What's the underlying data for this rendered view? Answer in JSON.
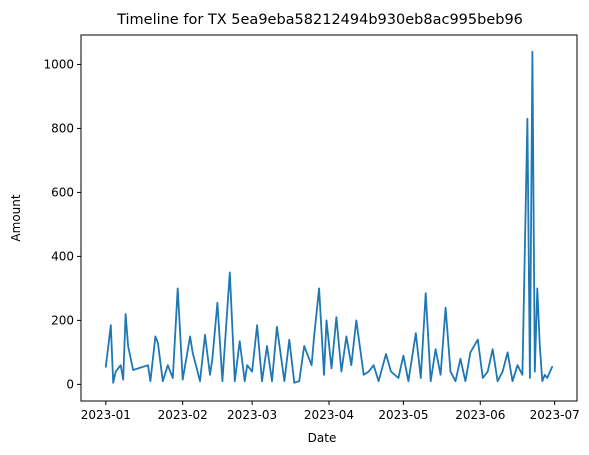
{
  "chart_data": {
    "type": "line",
    "title": "Timeline for TX 5ea9eba58212494b930eb8ac995beb96",
    "xlabel": "Date",
    "ylabel": "Amount",
    "x_ticks": [
      "2023-01",
      "2023-02",
      "2023-03",
      "2023-04",
      "2023-05",
      "2023-06",
      "2023-07"
    ],
    "y_ticks": [
      0,
      200,
      400,
      600,
      800,
      1000
    ],
    "xlim": [
      "2022-12-22",
      "2023-07-10"
    ],
    "ylim": [
      -52,
      1092
    ],
    "grid": false,
    "color": "#1f77b4",
    "series": [
      {
        "x": [
          "2023-01-01",
          "2023-01-03",
          "2023-01-04",
          "2023-01-05",
          "2023-01-07",
          "2023-01-08",
          "2023-01-09",
          "2023-01-10",
          "2023-01-12",
          "2023-01-18",
          "2023-01-19",
          "2023-01-21",
          "2023-01-22",
          "2023-01-24",
          "2023-01-26",
          "2023-01-28",
          "2023-01-30",
          "2023-02-01",
          "2023-02-04",
          "2023-02-05",
          "2023-02-08",
          "2023-02-10",
          "2023-02-12",
          "2023-02-13",
          "2023-02-15",
          "2023-02-17",
          "2023-02-20",
          "2023-02-22",
          "2023-02-24",
          "2023-02-26",
          "2023-02-27",
          "2023-03-01",
          "2023-03-03",
          "2023-03-05",
          "2023-03-07",
          "2023-03-09",
          "2023-03-11",
          "2023-03-14",
          "2023-03-16",
          "2023-03-18",
          "2023-03-20",
          "2023-03-22",
          "2023-03-25",
          "2023-03-26",
          "2023-03-28",
          "2023-03-30",
          "2023-03-31",
          "2023-04-02",
          "2023-04-04",
          "2023-04-06",
          "2023-04-08",
          "2023-04-10",
          "2023-04-12",
          "2023-04-15",
          "2023-04-17",
          "2023-04-19",
          "2023-04-21",
          "2023-04-24",
          "2023-04-26",
          "2023-04-29",
          "2023-05-01",
          "2023-05-03",
          "2023-05-06",
          "2023-05-08",
          "2023-05-10",
          "2023-05-12",
          "2023-05-14",
          "2023-05-16",
          "2023-05-18",
          "2023-05-20",
          "2023-05-22",
          "2023-05-24",
          "2023-05-26",
          "2023-05-28",
          "2023-05-31",
          "2023-06-02",
          "2023-06-04",
          "2023-06-06",
          "2023-06-08",
          "2023-06-10",
          "2023-06-12",
          "2023-06-14",
          "2023-06-16",
          "2023-06-18",
          "2023-06-20",
          "2023-06-21",
          "2023-06-22",
          "2023-06-23",
          "2023-06-24",
          "2023-06-25",
          "2023-06-26",
          "2023-06-27",
          "2023-06-28",
          "2023-06-30"
        ],
        "y": [
          55,
          185,
          5,
          40,
          60,
          15,
          220,
          120,
          45,
          60,
          10,
          150,
          130,
          10,
          60,
          20,
          300,
          15,
          150,
          100,
          10,
          155,
          30,
          80,
          255,
          10,
          350,
          10,
          135,
          10,
          60,
          40,
          185,
          10,
          120,
          10,
          180,
          10,
          140,
          5,
          10,
          120,
          60,
          150,
          300,
          30,
          200,
          50,
          210,
          40,
          150,
          60,
          200,
          30,
          40,
          60,
          10,
          95,
          40,
          20,
          90,
          10,
          160,
          20,
          285,
          10,
          110,
          30,
          240,
          40,
          10,
          80,
          10,
          100,
          140,
          20,
          40,
          110,
          10,
          40,
          100,
          10,
          60,
          30,
          830,
          20,
          1040,
          40,
          300,
          120,
          10,
          30,
          20,
          55
        ]
      }
    ]
  }
}
